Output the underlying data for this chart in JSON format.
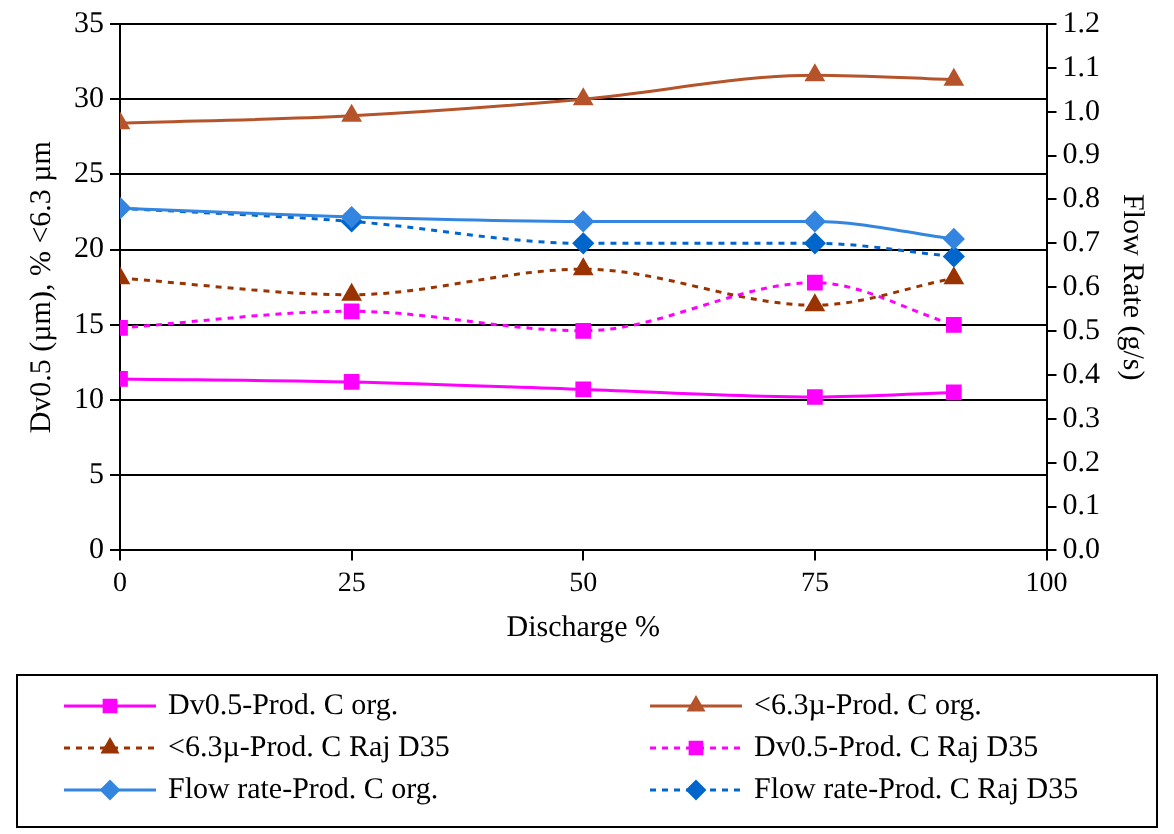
{
  "chart_data": {
    "type": "line",
    "xlabel": "Discharge %",
    "ylabel": "Dv0.5 (µm), % <6.3 µm",
    "y2label": "Flow Rate (g/s)",
    "x": [
      0,
      25,
      50,
      75,
      90
    ],
    "xlim": [
      0,
      100
    ],
    "xticks": [
      0,
      25,
      50,
      75,
      100
    ],
    "ylim": [
      0,
      35
    ],
    "yticks": [
      0,
      5,
      10,
      15,
      20,
      25,
      30,
      35
    ],
    "y2lim": [
      0,
      1.2
    ],
    "y2ticks": [
      {
        "value": 0,
        "label": "0.0"
      },
      0.1,
      0.2,
      0.3,
      0.4,
      0.5,
      0.6,
      0.7,
      0.8,
      0.9,
      {
        "value": 1,
        "label": "1.0"
      },
      1.1,
      1.2
    ],
    "grid": "y",
    "legend": "bottom",
    "series": [
      {
        "name": "Dv0.5-Prod. C org.",
        "color": "#ff00ff",
        "marker": "square",
        "line_style": "solid",
        "values": [
          11.4,
          11.2,
          10.7,
          10.2,
          10.5
        ]
      },
      {
        "name": "<6.3µ-Prod. C org.",
        "color": "#b5532a",
        "marker": "triangle",
        "line_style": "solid",
        "values": [
          28.4,
          28.9,
          30.0,
          31.6,
          31.3
        ]
      },
      {
        "name": "<6.3µ-Prod. C Raj D35",
        "color": "#993300",
        "marker": "triangle",
        "line_style": "dotted",
        "values": [
          18.1,
          17.0,
          18.7,
          16.3,
          18.1
        ]
      },
      {
        "name": "Dv0.5-Prod. C Raj D35",
        "color": "#ff00ff",
        "marker": "square",
        "line_style": "dotted",
        "values": [
          14.8,
          15.9,
          14.6,
          17.8,
          15.0
        ]
      },
      {
        "name": "Flow rate-Prod. C org.",
        "color": "#3385e0",
        "marker": "diamond",
        "line_style": "solid",
        "axis": "y2",
        "values": [
          0.78,
          0.76,
          0.75,
          0.75,
          0.71
        ]
      },
      {
        "name": "Flow rate-Prod. C Raj D35",
        "color": "#0066cc",
        "marker": "diamond",
        "line_style": "dotted",
        "axis": "y2",
        "values": [
          0.78,
          0.75,
          0.7,
          0.7,
          0.67
        ]
      }
    ]
  }
}
